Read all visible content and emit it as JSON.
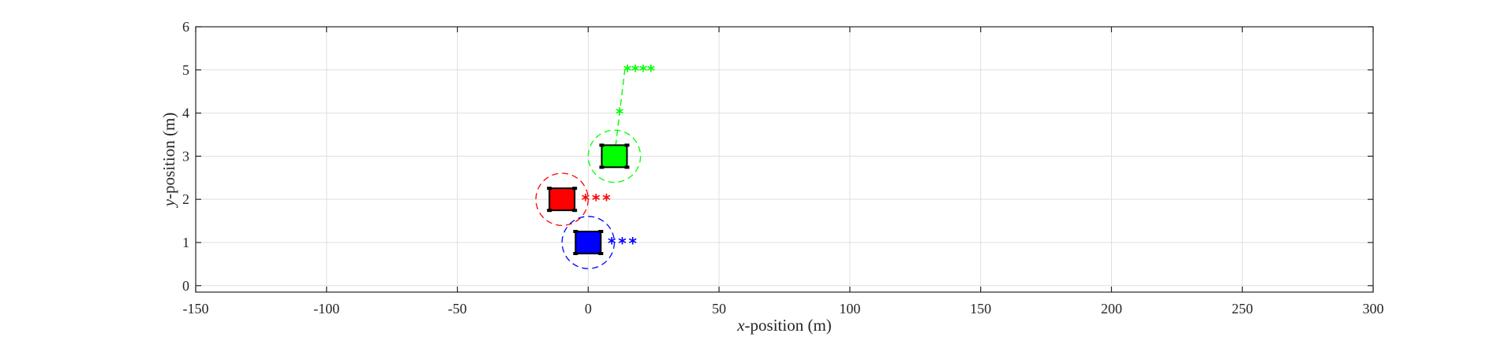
{
  "chart_data": {
    "type": "scatter",
    "xlabel": {
      "var": "x",
      "rest": "-position (m)"
    },
    "ylabel": {
      "var": "y",
      "rest": "-position (m)"
    },
    "xlim": [
      -150,
      300
    ],
    "ylim": [
      -0.15,
      6
    ],
    "xticks": [
      -150,
      -100,
      -50,
      0,
      50,
      100,
      150,
      200,
      250,
      300
    ],
    "yticks": [
      0,
      1,
      2,
      3,
      4,
      5,
      6
    ],
    "grid": true,
    "robots": [
      {
        "color": "#00ff00",
        "position": [
          10,
          3
        ],
        "safety_radius_x": 10,
        "path": [
          [
            10,
            3
          ],
          [
            12,
            4
          ],
          [
            14,
            5
          ]
        ],
        "waypoints": [
          [
            12,
            4
          ],
          [
            15,
            5
          ],
          [
            18,
            5
          ],
          [
            21,
            5
          ],
          [
            24,
            5
          ]
        ]
      },
      {
        "color": "#ff0000",
        "position": [
          -10,
          2
        ],
        "safety_radius_x": 10,
        "path": [],
        "waypoints": [
          [
            -1,
            2
          ],
          [
            3,
            2
          ],
          [
            7,
            2
          ]
        ]
      },
      {
        "color": "#0000ff",
        "position": [
          0,
          1
        ],
        "safety_radius_x": 10,
        "path": [],
        "waypoints": [
          [
            9,
            1
          ],
          [
            13,
            1
          ],
          [
            17,
            1
          ]
        ]
      }
    ]
  }
}
